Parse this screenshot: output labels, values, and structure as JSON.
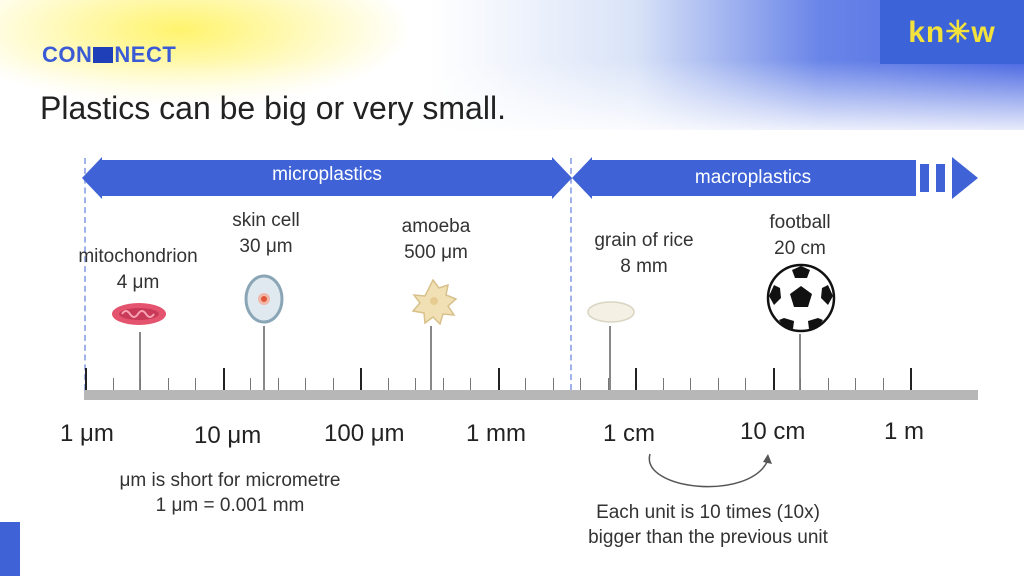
{
  "brand": {
    "left": "CON",
    "right": "NECT",
    "partner": "kn✳w"
  },
  "title": "Plastics can be big or very small.",
  "arrows": {
    "micro": "microplastics",
    "macro": "macroplastics"
  },
  "objects": [
    {
      "name": "mitochondrion",
      "size": "4 μm"
    },
    {
      "name": "skin cell",
      "size": "30 μm"
    },
    {
      "name": "amoeba",
      "size": "500 μm"
    },
    {
      "name": "grain of rice",
      "size": "8 mm"
    },
    {
      "name": "football",
      "size": "20 cm"
    }
  ],
  "scale_units": [
    "1 μm",
    "10 μm",
    "100 μm",
    "1 mm",
    "1 cm",
    "10 cm",
    "1 m"
  ],
  "note_um": {
    "line1": "μm is short for micrometre",
    "line2": "1 μm = 0.001 mm"
  },
  "note_scale": {
    "line1": "Each unit is 10 times (10x)",
    "line2": "bigger than the previous unit"
  },
  "colors": {
    "accent": "#3f63d6",
    "yellow": "#f4e23c",
    "axis": "#b7b7b7"
  },
  "icons": [
    "mitochondrion-icon",
    "skin-cell-icon",
    "amoeba-icon",
    "rice-grain-icon",
    "football-icon"
  ]
}
